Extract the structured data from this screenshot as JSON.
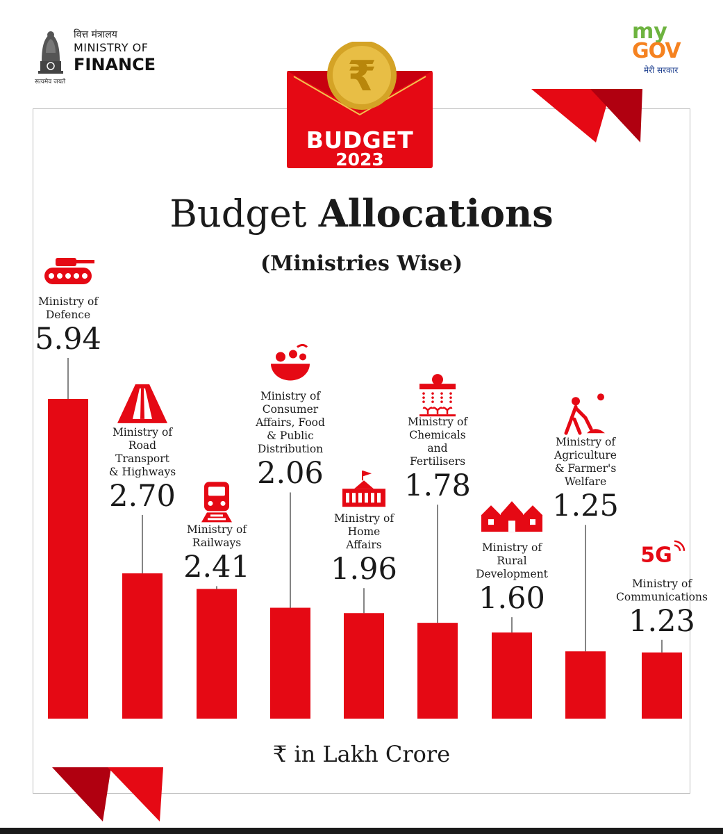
{
  "header": {
    "ministry_hindi": "वित्त मंत्रालय",
    "ministry_line1": "MINISTRY OF",
    "ministry_line2": "FINANCE",
    "motto": "सत्यमेव जयते",
    "mygov_my": "my",
    "mygov_gov": "GOV",
    "mygov_hindi": "मेरी सरकार"
  },
  "badge": {
    "word": "BUDGET",
    "year": "2023"
  },
  "colors": {
    "accent_red": "#e50914",
    "dark_red": "#b00010",
    "coin_gold": "#d4a326"
  },
  "chart_data": {
    "type": "bar",
    "title_light": "Budget",
    "title_bold": "Allocations",
    "subtitle": "(Ministries Wise)",
    "unit_label": "₹ in Lakh Crore",
    "categories": [
      "Ministry of\nDefence",
      "Ministry of\nRoad\nTransport\n& Highways",
      "Ministry of\nRailways",
      "Ministry of\nConsumer\nAffairs, Food\n& Public\nDistribution",
      "Ministry of\nHome\nAffairs",
      "Ministry of\nChemicals\nand\nFertilisers",
      "Ministry of\nRural\nDevelopment",
      "Ministry of\nAgriculture\n& Farmer's\nWelfare",
      "Ministry of\nCommunications"
    ],
    "value_labels": [
      "5.94",
      "2.70",
      "2.41",
      "2.06",
      "1.96",
      "1.78",
      "1.60",
      "1.25",
      "1.23"
    ],
    "values": [
      5.94,
      2.7,
      2.41,
      2.06,
      1.96,
      1.78,
      1.6,
      1.25,
      1.23
    ],
    "icons": [
      "tank-icon",
      "road-icon",
      "train-icon",
      "food-bowl-icon",
      "building-icon",
      "chemical-plant-icon",
      "houses-icon",
      "farmer-icon",
      "5g-icon"
    ],
    "icon_text_5g": "5G",
    "bar_color": "#e50914"
  }
}
